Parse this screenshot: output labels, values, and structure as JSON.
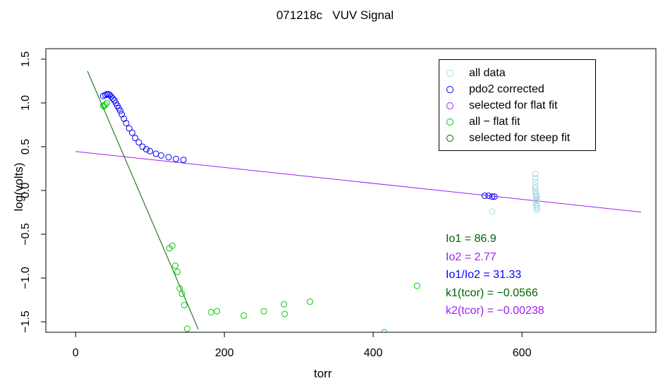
{
  "chart_data": {
    "type": "scatter",
    "title": "071218c   VUV Signal",
    "xlabel": "torr",
    "ylabel": "log(volts)",
    "xlim": [
      -40,
      780
    ],
    "ylim": [
      -1.62,
      1.62
    ],
    "xticks": [
      0,
      200,
      400,
      600
    ],
    "yticks": [
      -1.5,
      -1.0,
      -0.5,
      0.0,
      0.5,
      1.0,
      1.5
    ],
    "ytick_labels": [
      "−1.5",
      "−1.0",
      "−0.5",
      "0.0",
      "0.5",
      "1.0",
      "1.5"
    ],
    "legend_position": "top-right",
    "series": [
      {
        "name": "all data",
        "color": "#add8e6",
        "x": [
          560,
          618,
          618,
          618,
          618,
          618,
          618,
          618,
          619,
          619,
          619,
          619,
          619,
          619,
          619,
          620,
          620,
          620,
          620,
          620
        ],
        "y": [
          -0.24,
          0.19,
          0.14,
          0.1,
          0.06,
          0.03,
          0.0,
          -0.02,
          -0.04,
          -0.06,
          -0.08,
          -0.1,
          -0.12,
          -0.14,
          -0.16,
          -0.18,
          -0.2,
          -0.22,
          -0.07,
          -0.11
        ]
      },
      {
        "name": "pdo2 corrected",
        "color": "#0000ff",
        "x": [
          37,
          40,
          42,
          44,
          46,
          48,
          50,
          52,
          54,
          56,
          58,
          60,
          62,
          65,
          68,
          72,
          76,
          80,
          85,
          90,
          95,
          100,
          108,
          115,
          125,
          135,
          145,
          550,
          555,
          560,
          563
        ],
        "y": [
          1.08,
          1.09,
          1.1,
          1.1,
          1.09,
          1.07,
          1.05,
          1.03,
          1.0,
          0.97,
          0.94,
          0.91,
          0.87,
          0.82,
          0.77,
          0.71,
          0.66,
          0.6,
          0.55,
          0.5,
          0.47,
          0.45,
          0.42,
          0.4,
          0.38,
          0.36,
          0.35,
          -0.06,
          -0.06,
          -0.07,
          -0.07
        ]
      },
      {
        "name": "selected for flat fit",
        "color": "#a020f0",
        "line": {
          "intercept": 0.445,
          "slope": -0.00091,
          "x": [
            0,
            760
          ]
        }
      },
      {
        "name": "all − flat fit",
        "color": "#00cd00",
        "x": [
          37,
          38,
          40,
          42,
          126,
          130,
          134,
          137,
          140,
          143,
          146,
          150,
          182,
          190,
          226,
          253,
          280,
          281,
          315,
          415,
          459
        ],
        "y": [
          0.97,
          0.96,
          0.98,
          1.0,
          -0.66,
          -0.63,
          -0.86,
          -0.93,
          -1.12,
          -1.18,
          -1.31,
          -1.58,
          -1.39,
          -1.38,
          -1.43,
          -1.38,
          -1.3,
          -1.41,
          -1.27,
          -1.62,
          -1.09
        ]
      },
      {
        "name": "selected for steep fit",
        "color": "#006400",
        "line": {
          "intercept": 1.68,
          "slope": -0.0198,
          "x": [
            16,
            165
          ]
        }
      }
    ],
    "annotations": [
      {
        "text": "Io1 =  86.9",
        "color": "#006400"
      },
      {
        "text": "Io2 =  2.77",
        "color": "#a020f0"
      },
      {
        "text": "Io1/Io2 =  31.33",
        "color": "#0000ff"
      },
      {
        "text": "k1(tcor) =  −0.0566",
        "color": "#006400"
      },
      {
        "text": "k2(tcor) =  −0.00238",
        "color": "#a020f0"
      }
    ]
  }
}
